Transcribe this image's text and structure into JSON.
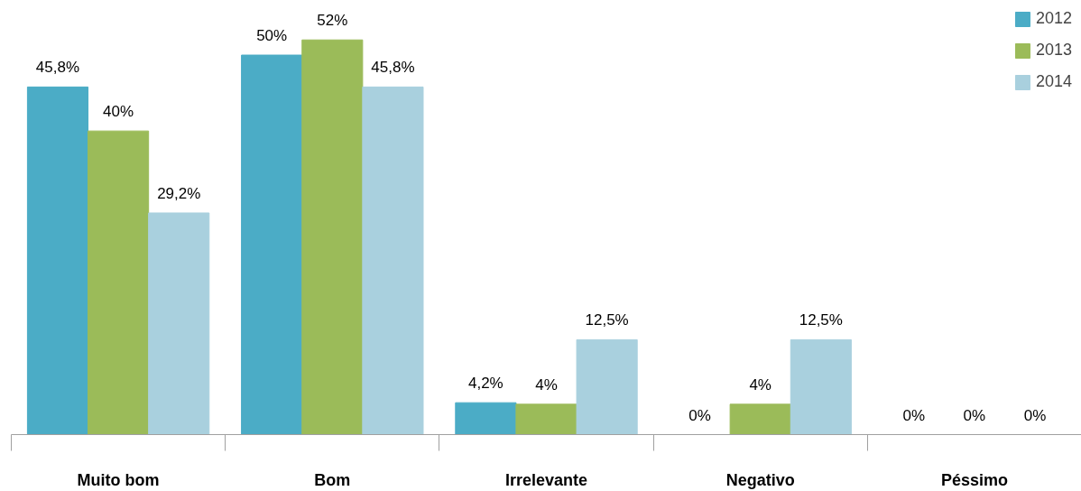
{
  "chart_data": {
    "type": "bar",
    "categories": [
      "Muito bom",
      "Bom",
      "Irrelevante",
      "Negativo",
      "Péssimo"
    ],
    "series": [
      {
        "name": "2012",
        "color": "#4bacc6",
        "values": [
          45.8,
          50,
          4.2,
          0,
          0
        ],
        "value_labels": [
          "45,8%",
          "50%",
          "4,2%",
          "0%",
          "0%"
        ]
      },
      {
        "name": "2013",
        "color": "#9bbb59",
        "values": [
          40,
          52,
          4,
          4,
          0
        ],
        "value_labels": [
          "40%",
          "52%",
          "4%",
          "4%",
          "0%"
        ]
      },
      {
        "name": "2014",
        "color": "#a9d0de",
        "values": [
          29.2,
          45.8,
          12.5,
          12.5,
          0
        ],
        "value_labels": [
          "29,2%",
          "45,8%",
          "12,5%",
          "12,5%",
          "0%"
        ]
      }
    ],
    "legend": "top right",
    "grid": false
  }
}
